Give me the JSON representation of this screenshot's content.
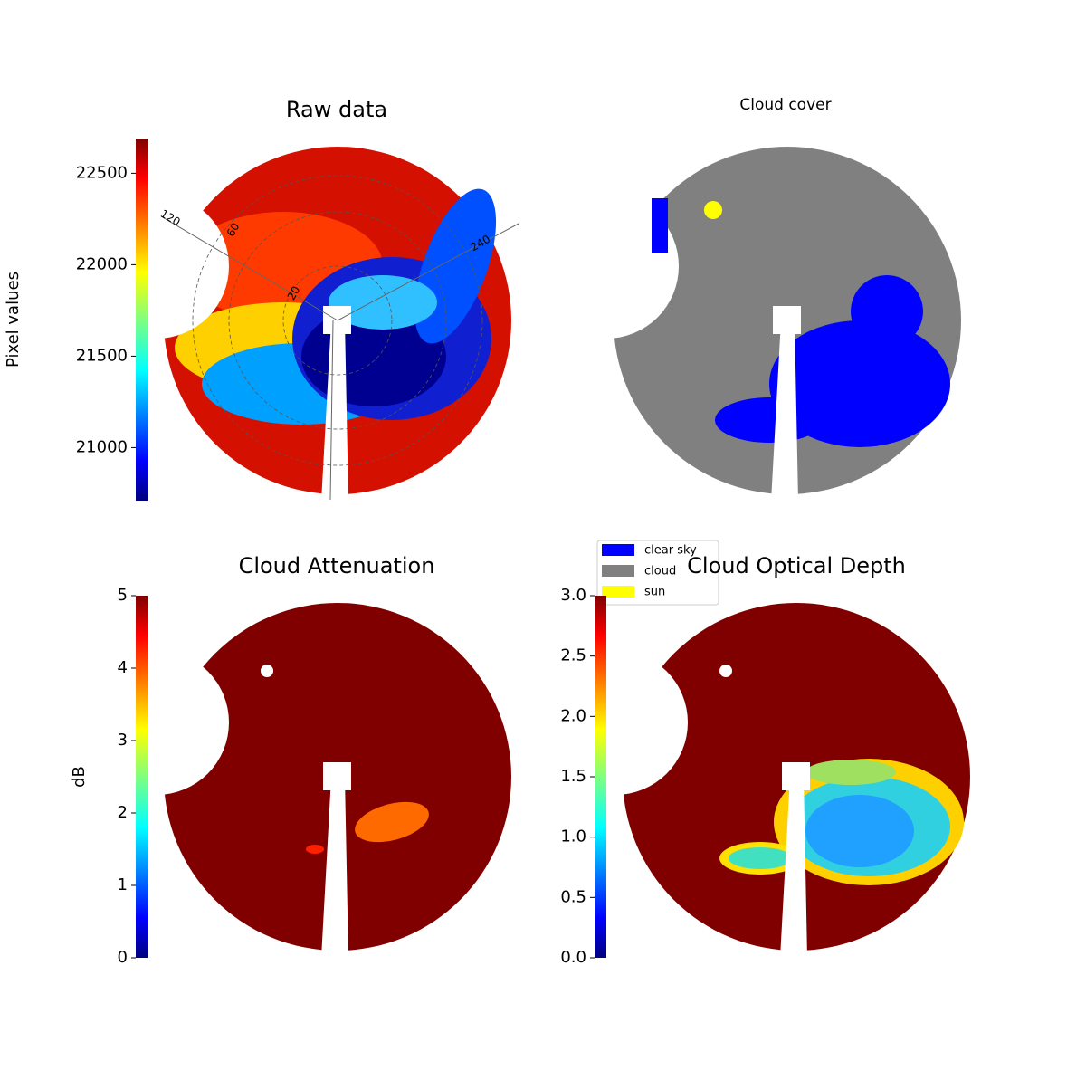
{
  "chart_data": [
    {
      "type": "image",
      "title": "Raw data",
      "colorbar_label": "Pixel values",
      "colormap": "jet",
      "clim": [
        20710,
        22690
      ],
      "cticks": [
        21000,
        21500,
        22000,
        22500
      ],
      "polar_labels": [
        "120",
        "240",
        "60",
        "20"
      ]
    },
    {
      "type": "mask",
      "title": "Cloud cover",
      "series": [
        {
          "name": "clear sky",
          "color": "#0000ff"
        },
        {
          "name": "cloud",
          "color": "#808080"
        },
        {
          "name": "sun",
          "color": "#ffff00"
        }
      ]
    },
    {
      "type": "image",
      "title": "Cloud Attenuation",
      "colorbar_label": "dB",
      "colormap": "jet",
      "clim": [
        0,
        5
      ],
      "cticks": [
        0,
        1,
        2,
        3,
        4,
        5
      ]
    },
    {
      "type": "image",
      "title": "Cloud Optical Depth",
      "colormap": "jet",
      "clim": [
        0,
        3
      ],
      "cticks": [
        {
          "value": 0,
          "label": "0.0"
        },
        0.5,
        {
          "value": 1,
          "label": "1.0"
        },
        1.5,
        {
          "value": 2,
          "label": "2.0"
        },
        2.5,
        {
          "value": 3,
          "label": "3.0"
        }
      ]
    }
  ]
}
